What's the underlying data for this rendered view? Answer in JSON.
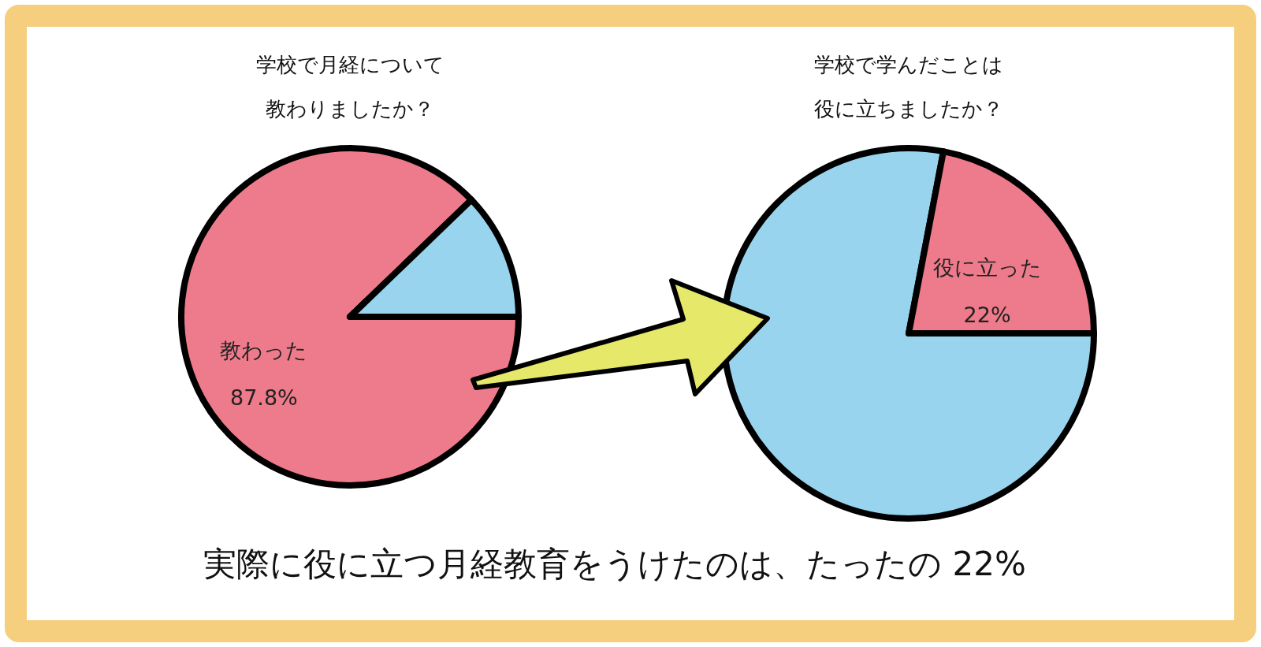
{
  "chart_data": [
    {
      "type": "pie",
      "title": "学校で月経について教わりましたか？",
      "categories": [
        "教わった",
        null
      ],
      "values": [
        87.8,
        12.2
      ],
      "colors": [
        "#ee7b8b",
        "#98d4ee"
      ],
      "value_labels": [
        "87.8%",
        null
      ]
    },
    {
      "type": "pie",
      "title": "学校で学んだことは役に立ちましたか？",
      "categories": [
        null,
        "役に立った"
      ],
      "values": [
        78,
        22
      ],
      "colors": [
        "#98d4ee",
        "#ee7b8b"
      ],
      "value_labels": [
        null,
        "22%"
      ],
      "annotations": [
        "実際に役に立つ月経教育をうけたのは、たったの 22%"
      ]
    }
  ]
}
